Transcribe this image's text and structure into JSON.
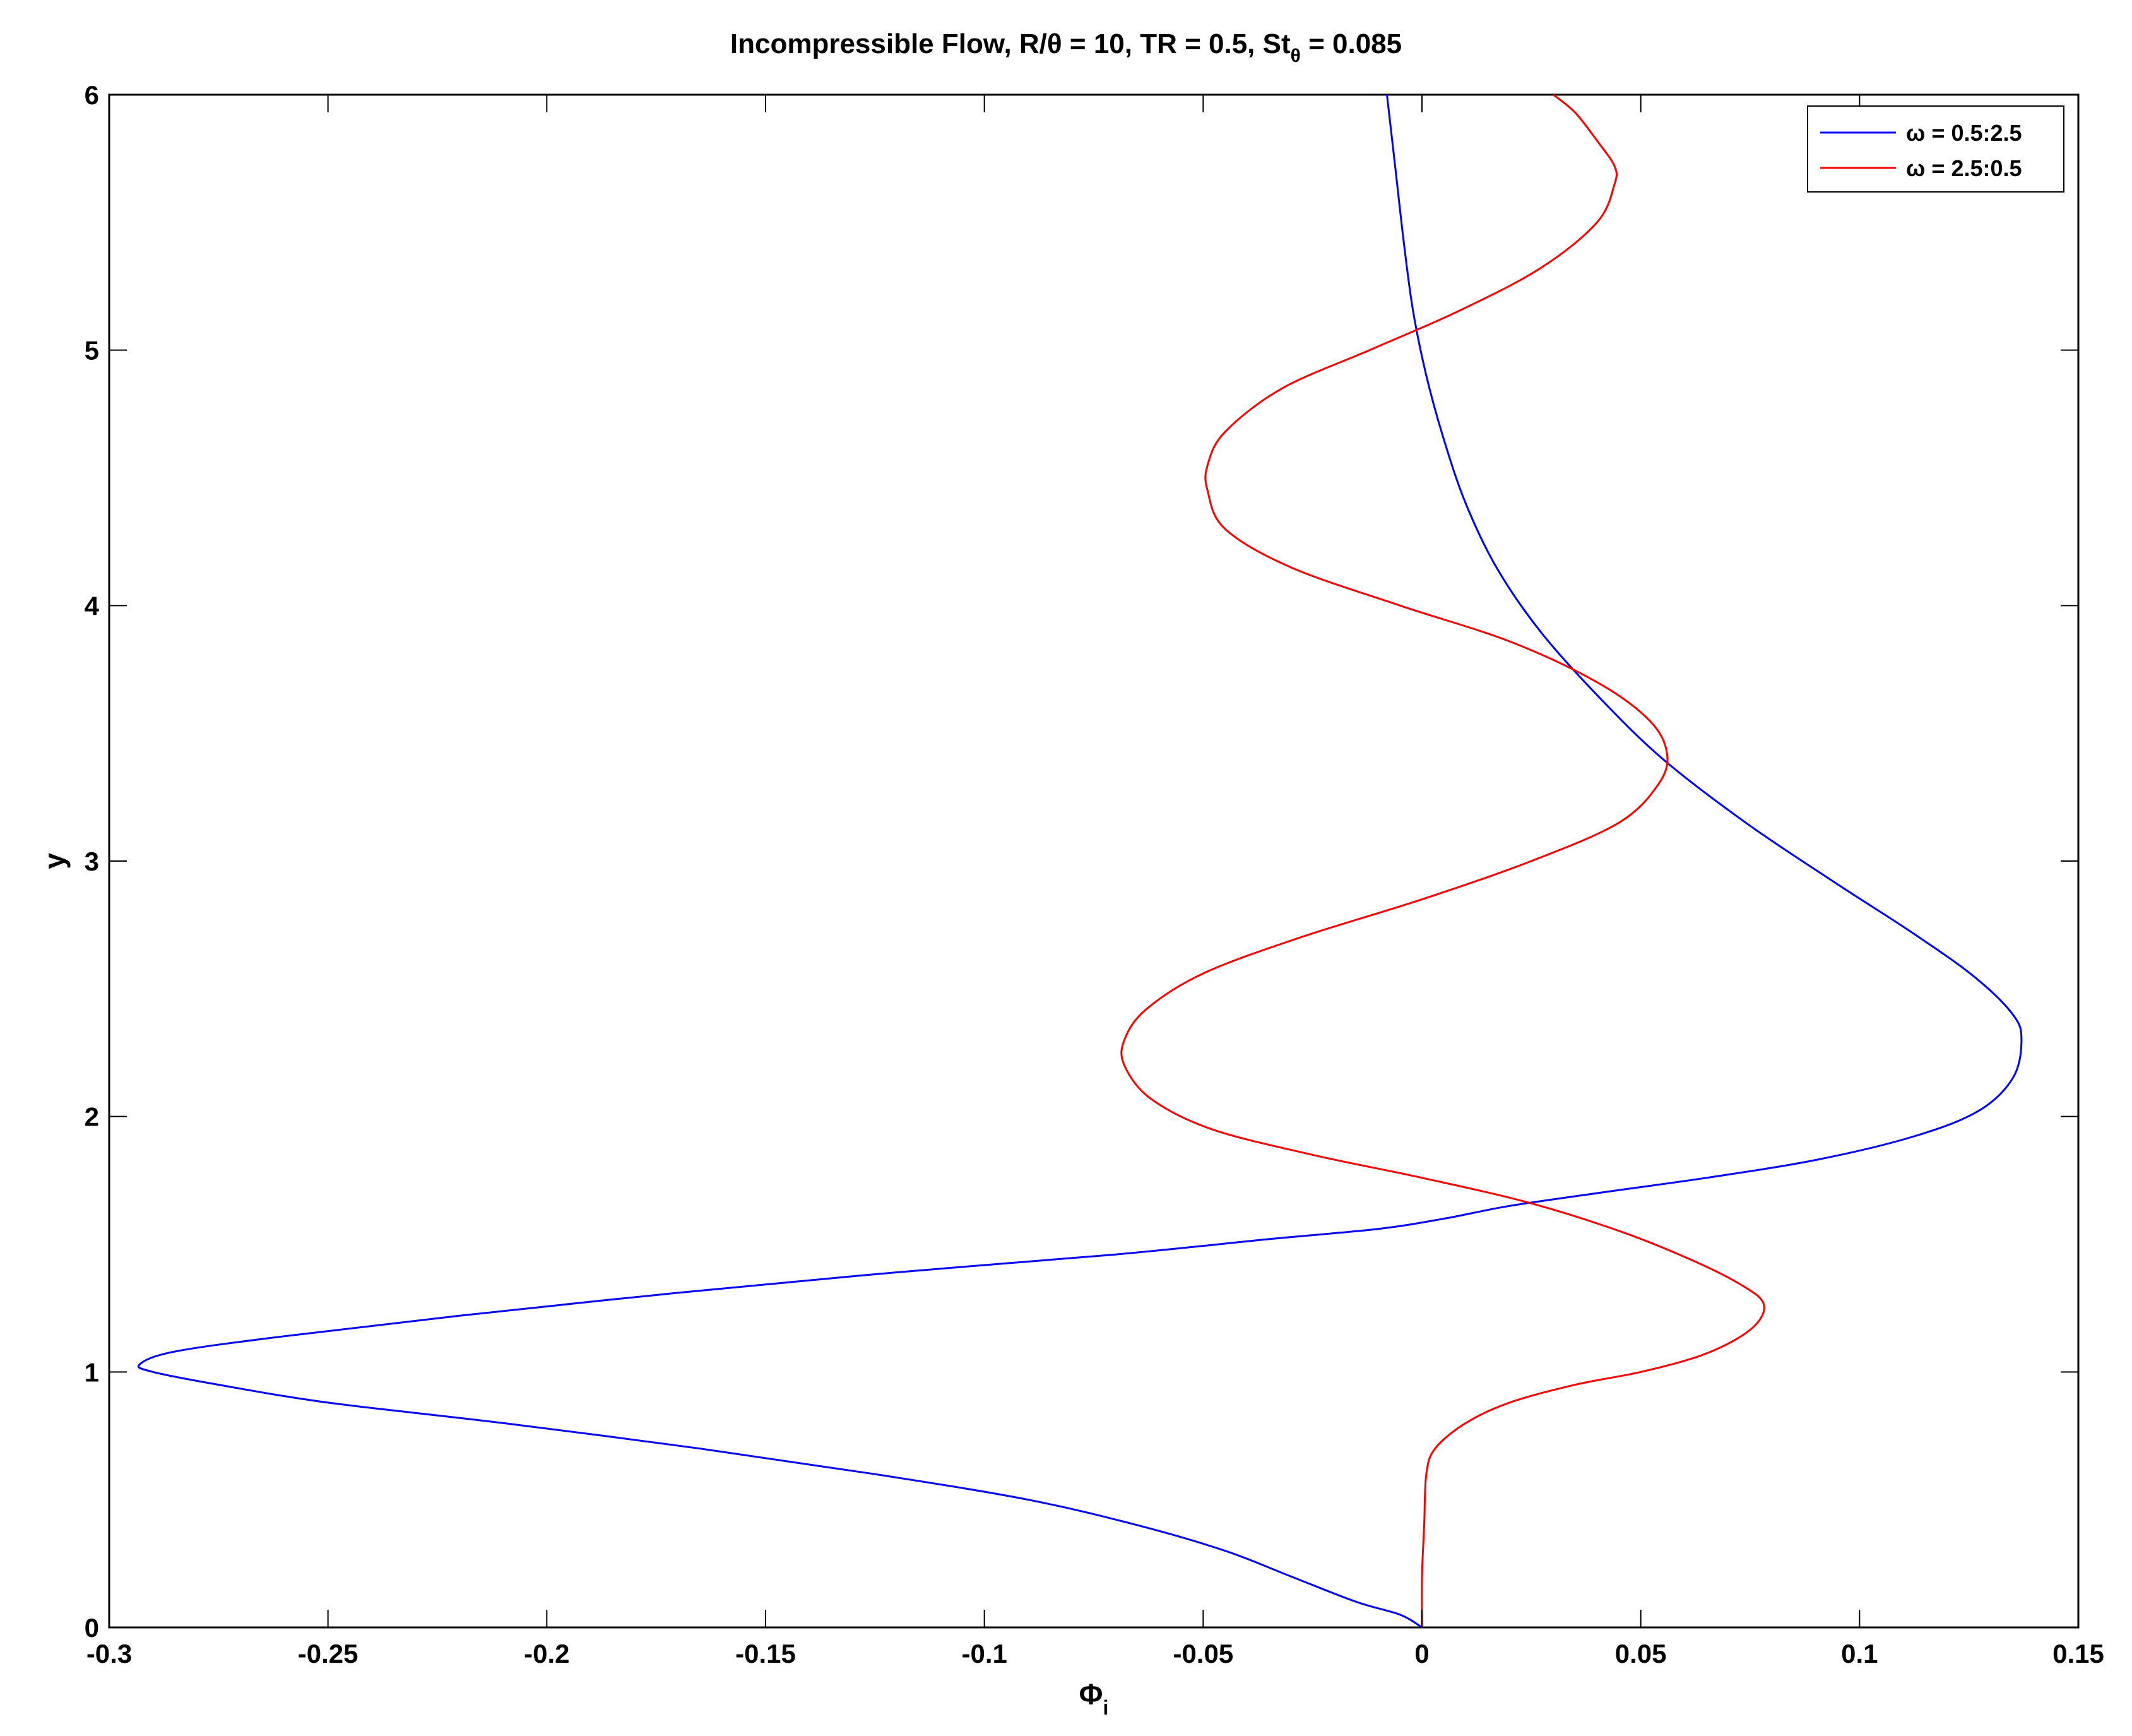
{
  "chart_data": {
    "type": "line",
    "title": "Incompressible Flow, R/θ = 10, TR = 0.5, St",
    "title_sub": "θ",
    "title_tail": " = 0.085",
    "xlabel": "Φ",
    "xlabel_sub": "i",
    "ylabel": "y",
    "xlim": [
      -0.3,
      0.15
    ],
    "ylim": [
      0,
      6
    ],
    "xticks": [
      -0.3,
      -0.25,
      -0.2,
      -0.15,
      -0.1,
      -0.05,
      0,
      0.05,
      0.1,
      0.15
    ],
    "xtick_labels": [
      "-0.3",
      "-0.25",
      "-0.2",
      "-0.15",
      "-0.1",
      "-0.05",
      "0",
      "0.05",
      "0.1",
      "0.15"
    ],
    "yticks": [
      0,
      1,
      2,
      3,
      4,
      5,
      6
    ],
    "ytick_labels": [
      "0",
      "1",
      "2",
      "3",
      "4",
      "5",
      "6"
    ],
    "grid": false,
    "legend_position": "top-right",
    "series": [
      {
        "name": "ω = 0.5:2.5",
        "color": "#0000ff",
        "points": [
          [
            0,
            0
          ],
          [
            -0.005,
            0.05
          ],
          [
            -0.015,
            0.1
          ],
          [
            -0.03,
            0.2
          ],
          [
            -0.045,
            0.3
          ],
          [
            -0.065,
            0.4
          ],
          [
            -0.09,
            0.5
          ],
          [
            -0.125,
            0.6
          ],
          [
            -0.165,
            0.7
          ],
          [
            -0.21,
            0.8
          ],
          [
            -0.25,
            0.88
          ],
          [
            -0.275,
            0.95
          ],
          [
            -0.29,
            1.0
          ],
          [
            -0.293,
            1.03
          ],
          [
            -0.285,
            1.08
          ],
          [
            -0.26,
            1.14
          ],
          [
            -0.22,
            1.22
          ],
          [
            -0.17,
            1.31
          ],
          [
            -0.12,
            1.39
          ],
          [
            -0.07,
            1.46
          ],
          [
            -0.035,
            1.52
          ],
          [
            -0.01,
            1.56
          ],
          [
            0.005,
            1.6
          ],
          [
            0.02,
            1.65
          ],
          [
            0.04,
            1.7
          ],
          [
            0.065,
            1.76
          ],
          [
            0.09,
            1.83
          ],
          [
            0.112,
            1.92
          ],
          [
            0.127,
            2.02
          ],
          [
            0.135,
            2.15
          ],
          [
            0.137,
            2.3
          ],
          [
            0.135,
            2.4
          ],
          [
            0.126,
            2.55
          ],
          [
            0.112,
            2.72
          ],
          [
            0.094,
            2.92
          ],
          [
            0.074,
            3.15
          ],
          [
            0.055,
            3.4
          ],
          [
            0.04,
            3.65
          ],
          [
            0.027,
            3.9
          ],
          [
            0.017,
            4.15
          ],
          [
            0.01,
            4.4
          ],
          [
            0.005,
            4.65
          ],
          [
            0.001,
            4.9
          ],
          [
            -0.002,
            5.15
          ],
          [
            -0.004,
            5.4
          ],
          [
            -0.006,
            5.7
          ],
          [
            -0.008,
            6.0
          ]
        ]
      },
      {
        "name": "ω = 2.5:0.5",
        "color": "#ff0000",
        "points": [
          [
            0,
            0
          ],
          [
            0,
            0.2
          ],
          [
            0.0005,
            0.4
          ],
          [
            0.001,
            0.6
          ],
          [
            0.003,
            0.7
          ],
          [
            0.01,
            0.8
          ],
          [
            0.02,
            0.88
          ],
          [
            0.035,
            0.95
          ],
          [
            0.05,
            1.0
          ],
          [
            0.063,
            1.06
          ],
          [
            0.072,
            1.13
          ],
          [
            0.077,
            1.2
          ],
          [
            0.078,
            1.27
          ],
          [
            0.074,
            1.33
          ],
          [
            0.064,
            1.42
          ],
          [
            0.047,
            1.54
          ],
          [
            0.025,
            1.66
          ],
          [
            0.0,
            1.76
          ],
          [
            -0.025,
            1.85
          ],
          [
            -0.048,
            1.95
          ],
          [
            -0.062,
            2.07
          ],
          [
            -0.068,
            2.2
          ],
          [
            -0.068,
            2.3
          ],
          [
            -0.063,
            2.42
          ],
          [
            -0.05,
            2.56
          ],
          [
            -0.028,
            2.7
          ],
          [
            0.0,
            2.85
          ],
          [
            0.025,
            3.0
          ],
          [
            0.045,
            3.15
          ],
          [
            0.054,
            3.3
          ],
          [
            0.056,
            3.42
          ],
          [
            0.052,
            3.55
          ],
          [
            0.04,
            3.7
          ],
          [
            0.02,
            3.86
          ],
          [
            -0.005,
            4.0
          ],
          [
            -0.03,
            4.15
          ],
          [
            -0.045,
            4.3
          ],
          [
            -0.049,
            4.45
          ],
          [
            -0.049,
            4.55
          ],
          [
            -0.045,
            4.68
          ],
          [
            -0.032,
            4.85
          ],
          [
            -0.012,
            5.0
          ],
          [
            0.008,
            5.15
          ],
          [
            0.027,
            5.32
          ],
          [
            0.04,
            5.5
          ],
          [
            0.044,
            5.65
          ],
          [
            0.044,
            5.72
          ],
          [
            0.04,
            5.82
          ],
          [
            0.035,
            5.93
          ],
          [
            0.03,
            6.0
          ]
        ]
      }
    ]
  }
}
